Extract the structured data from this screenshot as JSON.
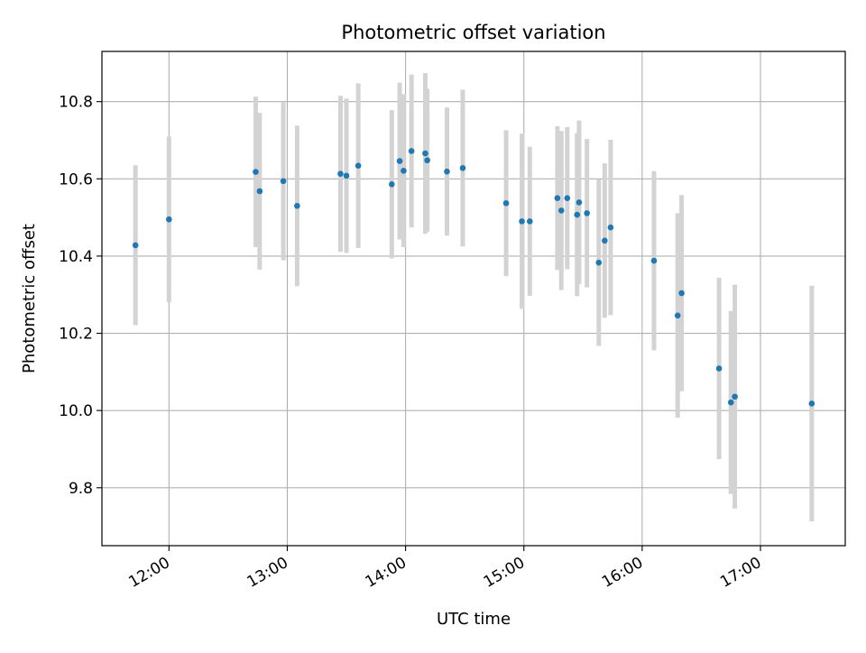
{
  "chart_data": {
    "type": "scatter",
    "title": "Photometric offset variation",
    "xlabel": "UTC time",
    "ylabel": "Photometric offset",
    "xlim": [
      "11:26",
      "17:43"
    ],
    "ylim": [
      9.65,
      10.93
    ],
    "x_ticks": [
      "12:00",
      "13:00",
      "14:00",
      "15:00",
      "16:00",
      "17:00"
    ],
    "y_ticks": [
      "9.8",
      "10.0",
      "10.2",
      "10.4",
      "10.6",
      "10.8"
    ],
    "grid": true,
    "point_color": "#1f77b4",
    "errorbar_color": "#d3d3d3",
    "series": [
      {
        "points": [
          {
            "x": "11:43",
            "y": 10.428,
            "err": 0.207
          },
          {
            "x": "12:00",
            "y": 10.495,
            "err": 0.215
          },
          {
            "x": "12:44",
            "y": 10.618,
            "err": 0.195
          },
          {
            "x": "12:46",
            "y": 10.568,
            "err": 0.203
          },
          {
            "x": "12:58",
            "y": 10.594,
            "err": 0.205
          },
          {
            "x": "13:05",
            "y": 10.53,
            "err": 0.208
          },
          {
            "x": "13:27",
            "y": 10.613,
            "err": 0.202
          },
          {
            "x": "13:30",
            "y": 10.608,
            "err": 0.2
          },
          {
            "x": "13:36",
            "y": 10.634,
            "err": 0.213
          },
          {
            "x": "13:53",
            "y": 10.586,
            "err": 0.192
          },
          {
            "x": "13:57",
            "y": 10.646,
            "err": 0.203
          },
          {
            "x": "13:59",
            "y": 10.621,
            "err": 0.198
          },
          {
            "x": "14:03",
            "y": 10.672,
            "err": 0.198
          },
          {
            "x": "14:10",
            "y": 10.666,
            "err": 0.208
          },
          {
            "x": "14:11",
            "y": 10.648,
            "err": 0.185
          },
          {
            "x": "14:21",
            "y": 10.619,
            "err": 0.166
          },
          {
            "x": "14:29",
            "y": 10.628,
            "err": 0.203
          },
          {
            "x": "14:51",
            "y": 10.537,
            "err": 0.189
          },
          {
            "x": "14:59",
            "y": 10.49,
            "err": 0.227
          },
          {
            "x": "15:03",
            "y": 10.49,
            "err": 0.193
          },
          {
            "x": "15:17",
            "y": 10.55,
            "err": 0.186
          },
          {
            "x": "15:19",
            "y": 10.518,
            "err": 0.206
          },
          {
            "x": "15:22",
            "y": 10.55,
            "err": 0.184
          },
          {
            "x": "15:27",
            "y": 10.507,
            "err": 0.211
          },
          {
            "x": "15:28",
            "y": 10.539,
            "err": 0.212
          },
          {
            "x": "15:32",
            "y": 10.511,
            "err": 0.192
          },
          {
            "x": "15:38",
            "y": 10.383,
            "err": 0.216
          },
          {
            "x": "15:41",
            "y": 10.44,
            "err": 0.2
          },
          {
            "x": "15:44",
            "y": 10.474,
            "err": 0.227
          },
          {
            "x": "16:06",
            "y": 10.388,
            "err": 0.232
          },
          {
            "x": "16:18",
            "y": 10.246,
            "err": 0.265
          },
          {
            "x": "16:20",
            "y": 10.304,
            "err": 0.254
          },
          {
            "x": "16:39",
            "y": 10.109,
            "err": 0.235
          },
          {
            "x": "16:45",
            "y": 10.021,
            "err": 0.237
          },
          {
            "x": "16:47",
            "y": 10.036,
            "err": 0.29
          },
          {
            "x": "17:26",
            "y": 10.018,
            "err": 0.305
          }
        ]
      }
    ]
  }
}
